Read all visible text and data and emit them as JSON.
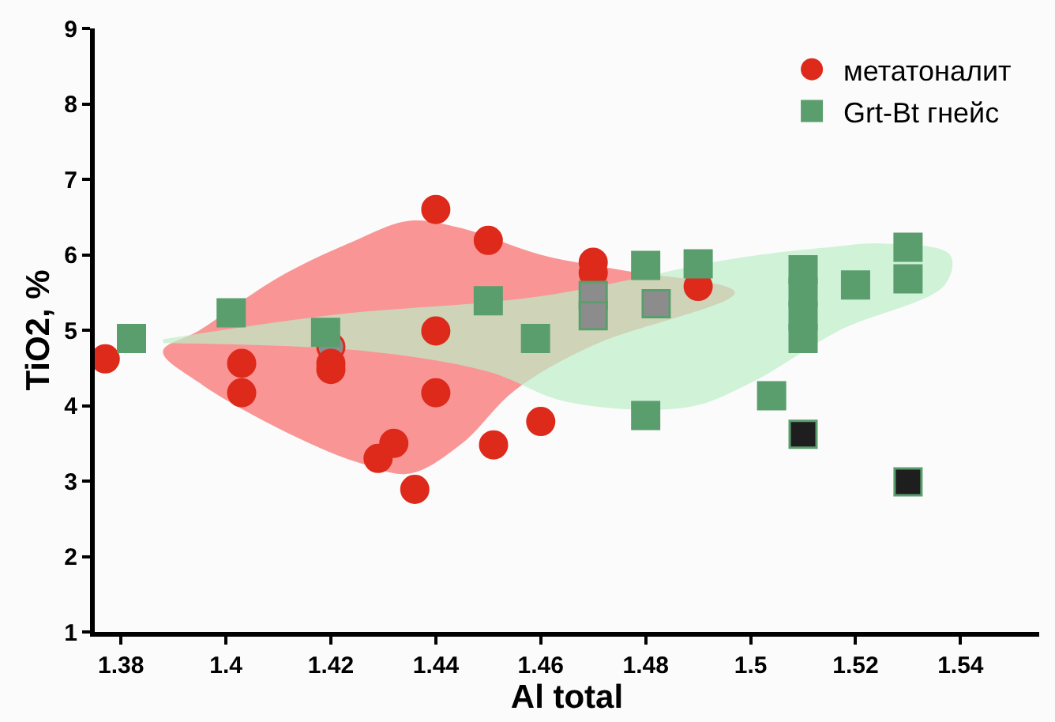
{
  "chart_data": {
    "type": "scatter",
    "xlabel": "Al total",
    "ylabel": "TiO2, %",
    "xlim": [
      1.375,
      1.555
    ],
    "ylim": [
      1,
      9
    ],
    "xticks": [
      1.38,
      {
        "value": 1.4,
        "label": "1.4"
      },
      1.42,
      1.44,
      1.46,
      1.48,
      {
        "value": 1.5,
        "label": "1.5"
      },
      1.52,
      1.54
    ],
    "yticks": [
      1,
      2,
      3,
      4,
      5,
      6,
      7,
      8,
      9
    ],
    "legend": "top right",
    "series": [
      {
        "type": "area",
        "color": "#f86a6a",
        "x": [
          1.388,
          1.395,
          1.41,
          1.425,
          1.435,
          1.445,
          1.46,
          1.475,
          1.497,
          1.47,
          1.455,
          1.445,
          1.435,
          1.425,
          1.41,
          1.395,
          1.388
        ],
        "values": [
          4.72,
          5.0,
          5.7,
          6.2,
          6.45,
          6.35,
          6.0,
          5.8,
          5.5,
          4.8,
          4.2,
          3.5,
          3.1,
          3.25,
          3.7,
          4.3,
          4.72
        ]
      },
      {
        "type": "area",
        "color": "#bdeec7",
        "x": [
          1.388,
          1.42,
          1.46,
          1.497,
          1.515,
          1.525,
          1.538,
          1.537,
          1.517,
          1.5,
          1.488,
          1.465,
          1.45,
          1.427,
          1.388
        ],
        "values": [
          4.88,
          5.2,
          5.45,
          5.95,
          6.1,
          6.15,
          6.0,
          5.6,
          5.0,
          4.3,
          3.98,
          4.05,
          4.45,
          4.72,
          4.83
        ]
      },
      {
        "name": "метатоналит",
        "marker": "circle",
        "color": "#dd2a1b",
        "x": [
          1.377,
          1.403,
          1.403,
          1.42,
          1.42,
          1.42,
          1.429,
          1.432,
          1.436,
          1.44,
          1.44,
          1.44,
          1.45,
          1.47,
          1.47,
          1.49,
          1.46,
          1.451
        ],
        "values": [
          4.62,
          4.56,
          4.17,
          4.78,
          4.56,
          4.48,
          3.3,
          3.5,
          2.89,
          6.6,
          4.99,
          4.17,
          6.19,
          5.9,
          5.76,
          5.58,
          3.79,
          3.48
        ],
        "colors": [
          "#dd2a1b",
          "#dd2a1b",
          "#dd2a1b",
          "#8c8c8c",
          "#dd2a1b",
          "#dd2a1b",
          "#dd2a1b",
          "#dd2a1b",
          "#dd2a1b",
          "#dd2a1b",
          "#dd2a1b",
          "#dd2a1b",
          "#dd2a1b",
          "#dd2a1b",
          "#dd2a1b",
          "#dd2a1b",
          "#dd2a1b",
          "#dd2a1b"
        ]
      },
      {
        "name": "Grt-Bt гнейс",
        "marker": "square",
        "color": "#5a9e6e",
        "x": [
          1.382,
          1.401,
          1.419,
          1.45,
          1.459,
          1.47,
          1.47,
          1.48,
          1.482,
          1.49,
          1.48,
          1.504,
          1.51,
          1.51,
          1.51,
          1.51,
          1.51,
          1.52,
          1.53,
          1.53,
          1.53
        ],
        "values": [
          4.89,
          5.23,
          4.97,
          5.39,
          4.89,
          5.46,
          5.19,
          5.86,
          5.35,
          5.88,
          3.87,
          4.13,
          5.8,
          5.5,
          5.19,
          4.89,
          3.62,
          5.6,
          6.1,
          5.68,
          2.99
        ],
        "colors": [
          "#5a9e6e",
          "#5a9e6e",
          "#5a9e6e",
          "#5a9e6e",
          "#5a9e6e",
          "#8c8c8c",
          "#8c8c8c",
          "#5a9e6e",
          "#8c8c8c",
          "#5a9e6e",
          "#5a9e6e",
          "#5a9e6e",
          "#5a9e6e",
          "#5a9e6e",
          "#5a9e6e",
          "#5a9e6e",
          "#1e1e1e",
          "#5a9e6e",
          "#5a9e6e",
          "#5a9e6e",
          "#1e1e1e"
        ]
      }
    ]
  }
}
